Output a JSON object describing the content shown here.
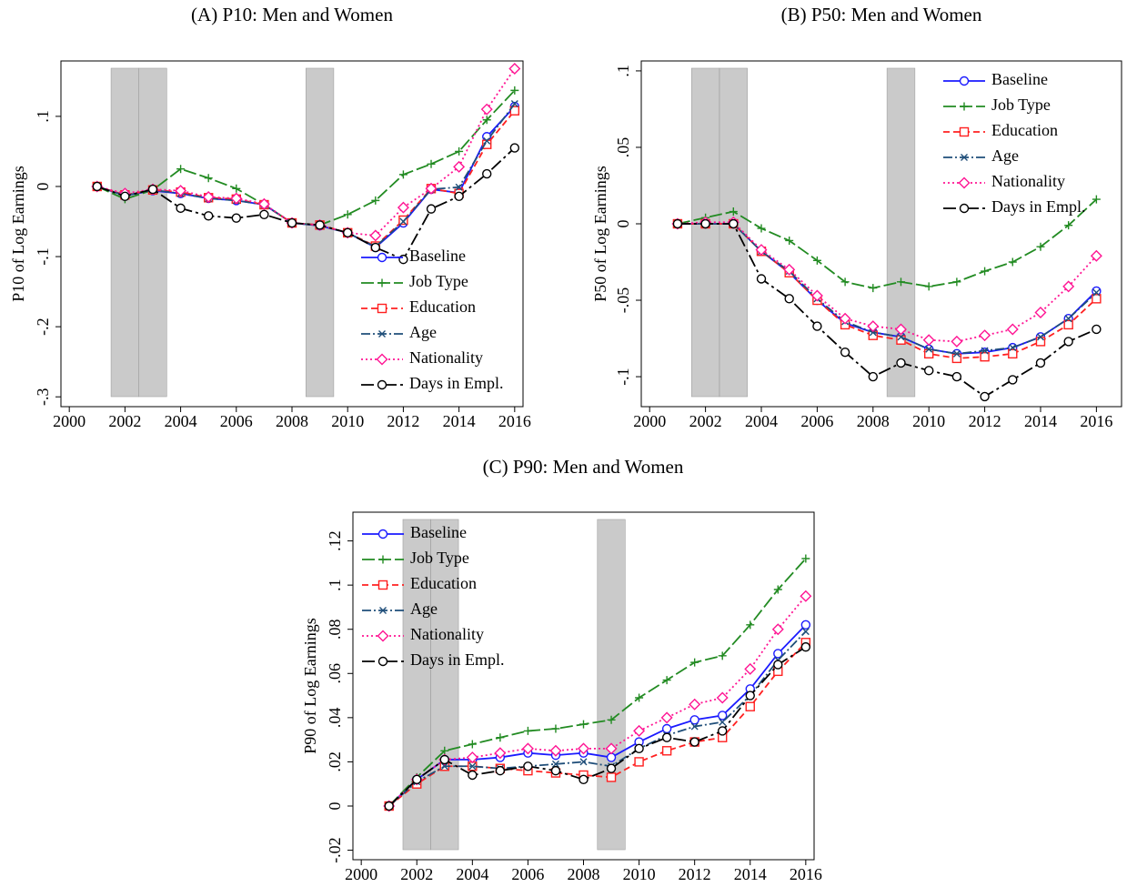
{
  "chart_data": [
    {
      "type": "line",
      "title": "(A) P10: Men and Women",
      "y_label": "P10 of Log Earnings",
      "x": [
        2001,
        2002,
        2003,
        2004,
        2005,
        2006,
        2007,
        2008,
        2009,
        2010,
        2011,
        2012,
        2013,
        2014,
        2015,
        2016
      ],
      "series": [
        {
          "name": "Baseline",
          "color": "#1a1aff",
          "values": [
            0,
            -0.013,
            -0.006,
            -0.01,
            -0.017,
            -0.02,
            -0.026,
            -0.052,
            -0.056,
            -0.066,
            -0.087,
            -0.052,
            -0.004,
            -0.009,
            0.071,
            0.114
          ]
        },
        {
          "name": "Job Type",
          "color": "#228b22",
          "values": [
            0,
            -0.018,
            -0.005,
            0.025,
            0.012,
            -0.003,
            -0.026,
            -0.052,
            -0.055,
            -0.04,
            -0.02,
            0.017,
            0.032,
            0.05,
            0.095,
            0.137
          ]
        },
        {
          "name": "Education",
          "color": "#ff2020",
          "values": [
            0,
            -0.012,
            -0.005,
            -0.008,
            -0.016,
            -0.018,
            -0.026,
            -0.052,
            -0.055,
            -0.066,
            -0.085,
            -0.048,
            -0.003,
            -0.01,
            0.06,
            0.108
          ]
        },
        {
          "name": "Age",
          "color": "#1f4e79",
          "values": [
            0,
            -0.013,
            -0.005,
            -0.01,
            -0.017,
            -0.02,
            -0.026,
            -0.052,
            -0.056,
            -0.066,
            -0.086,
            -0.05,
            -0.004,
            -0.001,
            0.065,
            0.118
          ]
        },
        {
          "name": "Nationality",
          "color": "#ff1493",
          "values": [
            0,
            -0.01,
            -0.004,
            -0.006,
            -0.015,
            -0.017,
            -0.025,
            -0.052,
            -0.055,
            -0.066,
            -0.07,
            -0.03,
            -0.003,
            0.028,
            0.11,
            0.168
          ]
        },
        {
          "name": "Days in Empl.",
          "color": "#000000",
          "values": [
            0,
            -0.014,
            -0.004,
            -0.031,
            -0.042,
            -0.045,
            -0.04,
            -0.052,
            -0.055,
            -0.066,
            -0.087,
            -0.104,
            -0.032,
            -0.014,
            0.018,
            0.055
          ]
        }
      ],
      "shaded_x": [
        [
          2001.5,
          2002.5
        ],
        [
          2002.5,
          2003.5
        ],
        [
          2008.5,
          2009.5
        ]
      ],
      "xlim": [
        1999.7,
        2016.3
      ],
      "xticks": [
        2000,
        2002,
        2004,
        2006,
        2008,
        2010,
        2012,
        2014,
        2016
      ],
      "ylim": [
        -0.314,
        0.179
      ],
      "yticks": [
        {
          "value": -0.3,
          "label": "-.3"
        },
        {
          "value": -0.2,
          "label": "-.2"
        },
        {
          "value": -0.1,
          "label": "-.1"
        },
        0,
        {
          "value": 0.1,
          "label": ".1"
        }
      ],
      "legend": "lower right"
    },
    {
      "type": "line",
      "title": "(B) P50: Men and Women",
      "y_label": "P50 of Log Earnings",
      "x": [
        2001,
        2002,
        2003,
        2004,
        2005,
        2006,
        2007,
        2008,
        2009,
        2010,
        2011,
        2012,
        2013,
        2014,
        2015,
        2016
      ],
      "series": [
        {
          "name": "Baseline",
          "color": "#1a1aff",
          "values": [
            0,
            0,
            0,
            -0.018,
            -0.032,
            -0.05,
            -0.065,
            -0.071,
            -0.074,
            -0.082,
            -0.085,
            -0.084,
            -0.081,
            -0.074,
            -0.062,
            -0.044
          ]
        },
        {
          "name": "Job Type",
          "color": "#228b22",
          "values": [
            0,
            0.004,
            0.008,
            -0.003,
            -0.011,
            -0.024,
            -0.038,
            -0.042,
            -0.038,
            -0.041,
            -0.038,
            -0.031,
            -0.025,
            -0.015,
            -0.001,
            0.016
          ]
        },
        {
          "name": "Education",
          "color": "#ff2020",
          "values": [
            0,
            0,
            0,
            -0.018,
            -0.032,
            -0.05,
            -0.066,
            -0.073,
            -0.076,
            -0.085,
            -0.088,
            -0.087,
            -0.085,
            -0.077,
            -0.066,
            -0.049
          ]
        },
        {
          "name": "Age",
          "color": "#1f4e79",
          "values": [
            0,
            0,
            0,
            -0.018,
            -0.031,
            -0.049,
            -0.064,
            -0.071,
            -0.074,
            -0.082,
            -0.085,
            -0.083,
            -0.081,
            -0.074,
            -0.062,
            -0.045
          ]
        },
        {
          "name": "Nationality",
          "color": "#ff1493",
          "values": [
            0,
            0.001,
            0.001,
            -0.017,
            -0.03,
            -0.047,
            -0.062,
            -0.067,
            -0.069,
            -0.076,
            -0.077,
            -0.073,
            -0.069,
            -0.058,
            -0.041,
            -0.021
          ]
        },
        {
          "name": "Days in Empl.",
          "color": "#000000",
          "values": [
            0,
            0,
            0,
            -0.036,
            -0.049,
            -0.067,
            -0.084,
            -0.1,
            -0.091,
            -0.096,
            -0.1,
            -0.113,
            -0.102,
            -0.091,
            -0.077,
            -0.069
          ]
        }
      ],
      "shaded_x": [
        [
          2001.5,
          2002.5
        ],
        [
          2002.5,
          2003.5
        ],
        [
          2008.5,
          2009.5
        ]
      ],
      "xlim": [
        1999.7,
        2016.9
      ],
      "xticks": [
        2000,
        2002,
        2004,
        2006,
        2008,
        2010,
        2012,
        2014,
        2016
      ],
      "ylim": [
        -0.1196,
        0.1065
      ],
      "yticks": [
        {
          "value": -0.1,
          "label": "-.1"
        },
        {
          "value": -0.05,
          "label": "-.05"
        },
        0,
        {
          "value": 0.05,
          "label": ".05"
        },
        {
          "value": 0.1,
          "label": ".1"
        }
      ],
      "legend": "upper right"
    },
    {
      "type": "line",
      "title": "(C) P90: Men and Women",
      "y_label": "P90 of Log Earnings",
      "x": [
        2001,
        2002,
        2003,
        2004,
        2005,
        2006,
        2007,
        2008,
        2009,
        2010,
        2011,
        2012,
        2013,
        2014,
        2015,
        2016
      ],
      "series": [
        {
          "name": "Baseline",
          "color": "#1a1aff",
          "values": [
            0,
            0.012,
            0.021,
            0.021,
            0.022,
            0.024,
            0.023,
            0.024,
            0.022,
            0.029,
            0.035,
            0.039,
            0.041,
            0.053,
            0.069,
            0.082
          ]
        },
        {
          "name": "Job Type",
          "color": "#228b22",
          "values": [
            0,
            0.013,
            0.025,
            0.028,
            0.031,
            0.034,
            0.035,
            0.037,
            0.039,
            0.049,
            0.057,
            0.065,
            0.068,
            0.082,
            0.098,
            0.112
          ]
        },
        {
          "name": "Education",
          "color": "#ff2020",
          "values": [
            0,
            0.01,
            0.018,
            0.018,
            0.017,
            0.016,
            0.015,
            0.014,
            0.013,
            0.02,
            0.025,
            0.029,
            0.031,
            0.045,
            0.061,
            0.074
          ]
        },
        {
          "name": "Age",
          "color": "#1f4e79",
          "values": [
            0,
            0.011,
            0.018,
            0.018,
            0.017,
            0.018,
            0.019,
            0.02,
            0.018,
            0.026,
            0.032,
            0.036,
            0.038,
            0.05,
            0.066,
            0.079
          ]
        },
        {
          "name": "Nationality",
          "color": "#ff1493",
          "values": [
            0,
            0.012,
            0.021,
            0.022,
            0.024,
            0.026,
            0.025,
            0.026,
            0.026,
            0.034,
            0.04,
            0.046,
            0.049,
            0.062,
            0.08,
            0.095
          ]
        },
        {
          "name": "Days in Empl.",
          "color": "#000000",
          "values": [
            0,
            0.012,
            0.021,
            0.014,
            0.016,
            0.018,
            0.016,
            0.012,
            0.017,
            0.026,
            0.031,
            0.029,
            0.034,
            0.05,
            0.064,
            0.072
          ]
        }
      ],
      "shaded_x": [
        [
          2001.5,
          2002.5
        ],
        [
          2002.5,
          2003.5
        ],
        [
          2008.5,
          2009.5
        ]
      ],
      "xlim": [
        1999.7,
        2016.3
      ],
      "xticks": [
        2000,
        2002,
        2004,
        2006,
        2008,
        2010,
        2012,
        2014,
        2016
      ],
      "ylim": [
        -0.0243,
        0.133
      ],
      "yticks": [
        {
          "value": -0.02,
          "label": "-.02"
        },
        0,
        {
          "value": 0.02,
          "label": ".02"
        },
        {
          "value": 0.04,
          "label": ".04"
        },
        {
          "value": 0.06,
          "label": ".06"
        },
        {
          "value": 0.08,
          "label": ".08"
        },
        {
          "value": 0.1,
          "label": ".1"
        },
        {
          "value": 0.12,
          "label": ".12"
        }
      ],
      "legend": "upper left"
    }
  ]
}
